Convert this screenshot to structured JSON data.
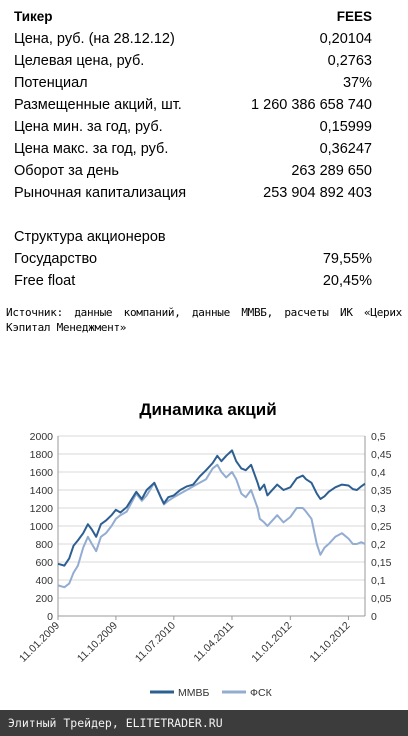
{
  "table": {
    "header": {
      "label": "Тикер",
      "value": "FEES"
    },
    "rows": [
      {
        "label": "Цена, руб. (на 28.12.12)",
        "value": "0,20104"
      },
      {
        "label": "Целевая цена, руб.",
        "value": "0,2763"
      },
      {
        "label": "Потенциал",
        "value": "37%"
      },
      {
        "label": "Размещенные акций, шт.",
        "value": "1 260 386 658 740"
      },
      {
        "label": "Цена мин. за год, руб.",
        "value": "0,15999"
      },
      {
        "label": "Цена макс. за год, руб.",
        "value": "0,36247"
      },
      {
        "label": "Оборот за день",
        "value": "263 289 650"
      },
      {
        "label": "Рыночная капитализация",
        "value": "253 904 892 403"
      }
    ],
    "structure_title": "Структура акционеров",
    "structure_rows": [
      {
        "label": "Государство",
        "value": "79,55%"
      },
      {
        "label": "Free float",
        "value": "20,45%"
      }
    ]
  },
  "source_note": "Источник: данные компаний, данные ММВБ, расчеты ИК «Церих Кэпитал Менеджмент»",
  "footer": "Элитный Трейдер, ELITETRADER.RU",
  "colors": {
    "micex": "#2e5f91",
    "fsk": "#93acd2",
    "grid": "#d9d9d9"
  },
  "chart_data": {
    "type": "line",
    "title": "Динамика акций",
    "x_tick_labels": [
      "11.01.2009",
      "11.10.2009",
      "11.07.2010",
      "11.04.2011",
      "11.01.2012",
      "11.10.2012"
    ],
    "x_ticks": [
      "2009-01-11",
      "2009-10-11",
      "2010-07-11",
      "2011-04-11",
      "2012-01-11",
      "2012-10-11"
    ],
    "x_range": [
      "2009-01-11",
      "2012-12-28"
    ],
    "y_left": {
      "ticks": [
        0,
        200,
        400,
        600,
        800,
        1000,
        1200,
        1400,
        1600,
        1800,
        2000
      ],
      "range": [
        0,
        2000
      ]
    },
    "y_right": {
      "ticks": [
        "0",
        "0,05",
        "0,1",
        "0,15",
        "0,2",
        "0,25",
        "0,3",
        "0,35",
        "0,4",
        "0,45",
        "0,5"
      ],
      "range": [
        0,
        0.5
      ]
    },
    "grid": true,
    "legend_position": "bottom",
    "series": [
      {
        "name": "ММВБ",
        "axis": "left",
        "points": [
          [
            "2009-01-11",
            580
          ],
          [
            "2009-02-10",
            560
          ],
          [
            "2009-03-05",
            640
          ],
          [
            "2009-03-25",
            780
          ],
          [
            "2009-04-15",
            840
          ],
          [
            "2009-05-10",
            920
          ],
          [
            "2009-06-01",
            1020
          ],
          [
            "2009-06-20",
            960
          ],
          [
            "2009-07-10",
            880
          ],
          [
            "2009-08-01",
            1020
          ],
          [
            "2009-08-25",
            1060
          ],
          [
            "2009-09-20",
            1120
          ],
          [
            "2009-10-11",
            1180
          ],
          [
            "2009-11-01",
            1150
          ],
          [
            "2009-12-01",
            1210
          ],
          [
            "2010-01-15",
            1380
          ],
          [
            "2010-02-10",
            1300
          ],
          [
            "2010-03-05",
            1400
          ],
          [
            "2010-04-10",
            1480
          ],
          [
            "2010-05-10",
            1320
          ],
          [
            "2010-05-25",
            1250
          ],
          [
            "2010-06-15",
            1320
          ],
          [
            "2010-07-11",
            1340
          ],
          [
            "2010-08-10",
            1400
          ],
          [
            "2010-09-10",
            1440
          ],
          [
            "2010-10-10",
            1460
          ],
          [
            "2010-11-10",
            1550
          ],
          [
            "2010-12-10",
            1620
          ],
          [
            "2011-01-10",
            1700
          ],
          [
            "2011-02-01",
            1780
          ],
          [
            "2011-02-20",
            1720
          ],
          [
            "2011-03-15",
            1780
          ],
          [
            "2011-04-11",
            1840
          ],
          [
            "2011-05-01",
            1720
          ],
          [
            "2011-05-25",
            1640
          ],
          [
            "2011-06-15",
            1620
          ],
          [
            "2011-07-10",
            1680
          ],
          [
            "2011-08-10",
            1480
          ],
          [
            "2011-08-20",
            1400
          ],
          [
            "2011-09-10",
            1460
          ],
          [
            "2011-09-25",
            1340
          ],
          [
            "2011-10-10",
            1380
          ],
          [
            "2011-11-10",
            1460
          ],
          [
            "2011-12-10",
            1400
          ],
          [
            "2012-01-11",
            1430
          ],
          [
            "2012-02-10",
            1530
          ],
          [
            "2012-03-10",
            1560
          ],
          [
            "2012-03-25",
            1520
          ],
          [
            "2012-04-20",
            1480
          ],
          [
            "2012-05-15",
            1360
          ],
          [
            "2012-06-01",
            1300
          ],
          [
            "2012-06-20",
            1330
          ],
          [
            "2012-07-10",
            1380
          ],
          [
            "2012-08-10",
            1430
          ],
          [
            "2012-09-10",
            1460
          ],
          [
            "2012-10-11",
            1450
          ],
          [
            "2012-11-01",
            1410
          ],
          [
            "2012-11-20",
            1400
          ],
          [
            "2012-12-10",
            1440
          ],
          [
            "2012-12-28",
            1470
          ]
        ]
      },
      {
        "name": "ФСК",
        "axis": "right",
        "points": [
          [
            "2009-01-11",
            0.085
          ],
          [
            "2009-02-10",
            0.08
          ],
          [
            "2009-03-05",
            0.09
          ],
          [
            "2009-03-25",
            0.12
          ],
          [
            "2009-04-15",
            0.14
          ],
          [
            "2009-05-10",
            0.19
          ],
          [
            "2009-06-01",
            0.22
          ],
          [
            "2009-06-20",
            0.2
          ],
          [
            "2009-07-10",
            0.18
          ],
          [
            "2009-08-01",
            0.22
          ],
          [
            "2009-08-25",
            0.23
          ],
          [
            "2009-09-20",
            0.25
          ],
          [
            "2009-10-11",
            0.27
          ],
          [
            "2009-11-01",
            0.28
          ],
          [
            "2009-12-01",
            0.29
          ],
          [
            "2010-01-15",
            0.34
          ],
          [
            "2010-02-10",
            0.32
          ],
          [
            "2010-03-05",
            0.335
          ],
          [
            "2010-04-10",
            0.37
          ],
          [
            "2010-05-10",
            0.33
          ],
          [
            "2010-05-25",
            0.31
          ],
          [
            "2010-06-15",
            0.32
          ],
          [
            "2010-07-11",
            0.33
          ],
          [
            "2010-08-10",
            0.34
          ],
          [
            "2010-09-10",
            0.35
          ],
          [
            "2010-10-10",
            0.36
          ],
          [
            "2010-11-10",
            0.37
          ],
          [
            "2010-12-10",
            0.38
          ],
          [
            "2011-01-10",
            0.41
          ],
          [
            "2011-02-01",
            0.42
          ],
          [
            "2011-02-20",
            0.4
          ],
          [
            "2011-03-15",
            0.385
          ],
          [
            "2011-04-11",
            0.4
          ],
          [
            "2011-05-01",
            0.38
          ],
          [
            "2011-05-25",
            0.34
          ],
          [
            "2011-06-15",
            0.33
          ],
          [
            "2011-07-10",
            0.35
          ],
          [
            "2011-08-10",
            0.3
          ],
          [
            "2011-08-20",
            0.27
          ],
          [
            "2011-09-10",
            0.26
          ],
          [
            "2011-09-25",
            0.25
          ],
          [
            "2011-10-10",
            0.26
          ],
          [
            "2011-11-10",
            0.28
          ],
          [
            "2011-12-10",
            0.26
          ],
          [
            "2012-01-11",
            0.275
          ],
          [
            "2012-02-10",
            0.3
          ],
          [
            "2012-03-10",
            0.3
          ],
          [
            "2012-03-25",
            0.29
          ],
          [
            "2012-04-20",
            0.27
          ],
          [
            "2012-05-15",
            0.2
          ],
          [
            "2012-06-01",
            0.17
          ],
          [
            "2012-06-20",
            0.19
          ],
          [
            "2012-07-10",
            0.2
          ],
          [
            "2012-08-10",
            0.22
          ],
          [
            "2012-09-10",
            0.23
          ],
          [
            "2012-10-11",
            0.215
          ],
          [
            "2012-11-01",
            0.2
          ],
          [
            "2012-11-20",
            0.2
          ],
          [
            "2012-12-10",
            0.205
          ],
          [
            "2012-12-28",
            0.2
          ]
        ]
      }
    ]
  }
}
